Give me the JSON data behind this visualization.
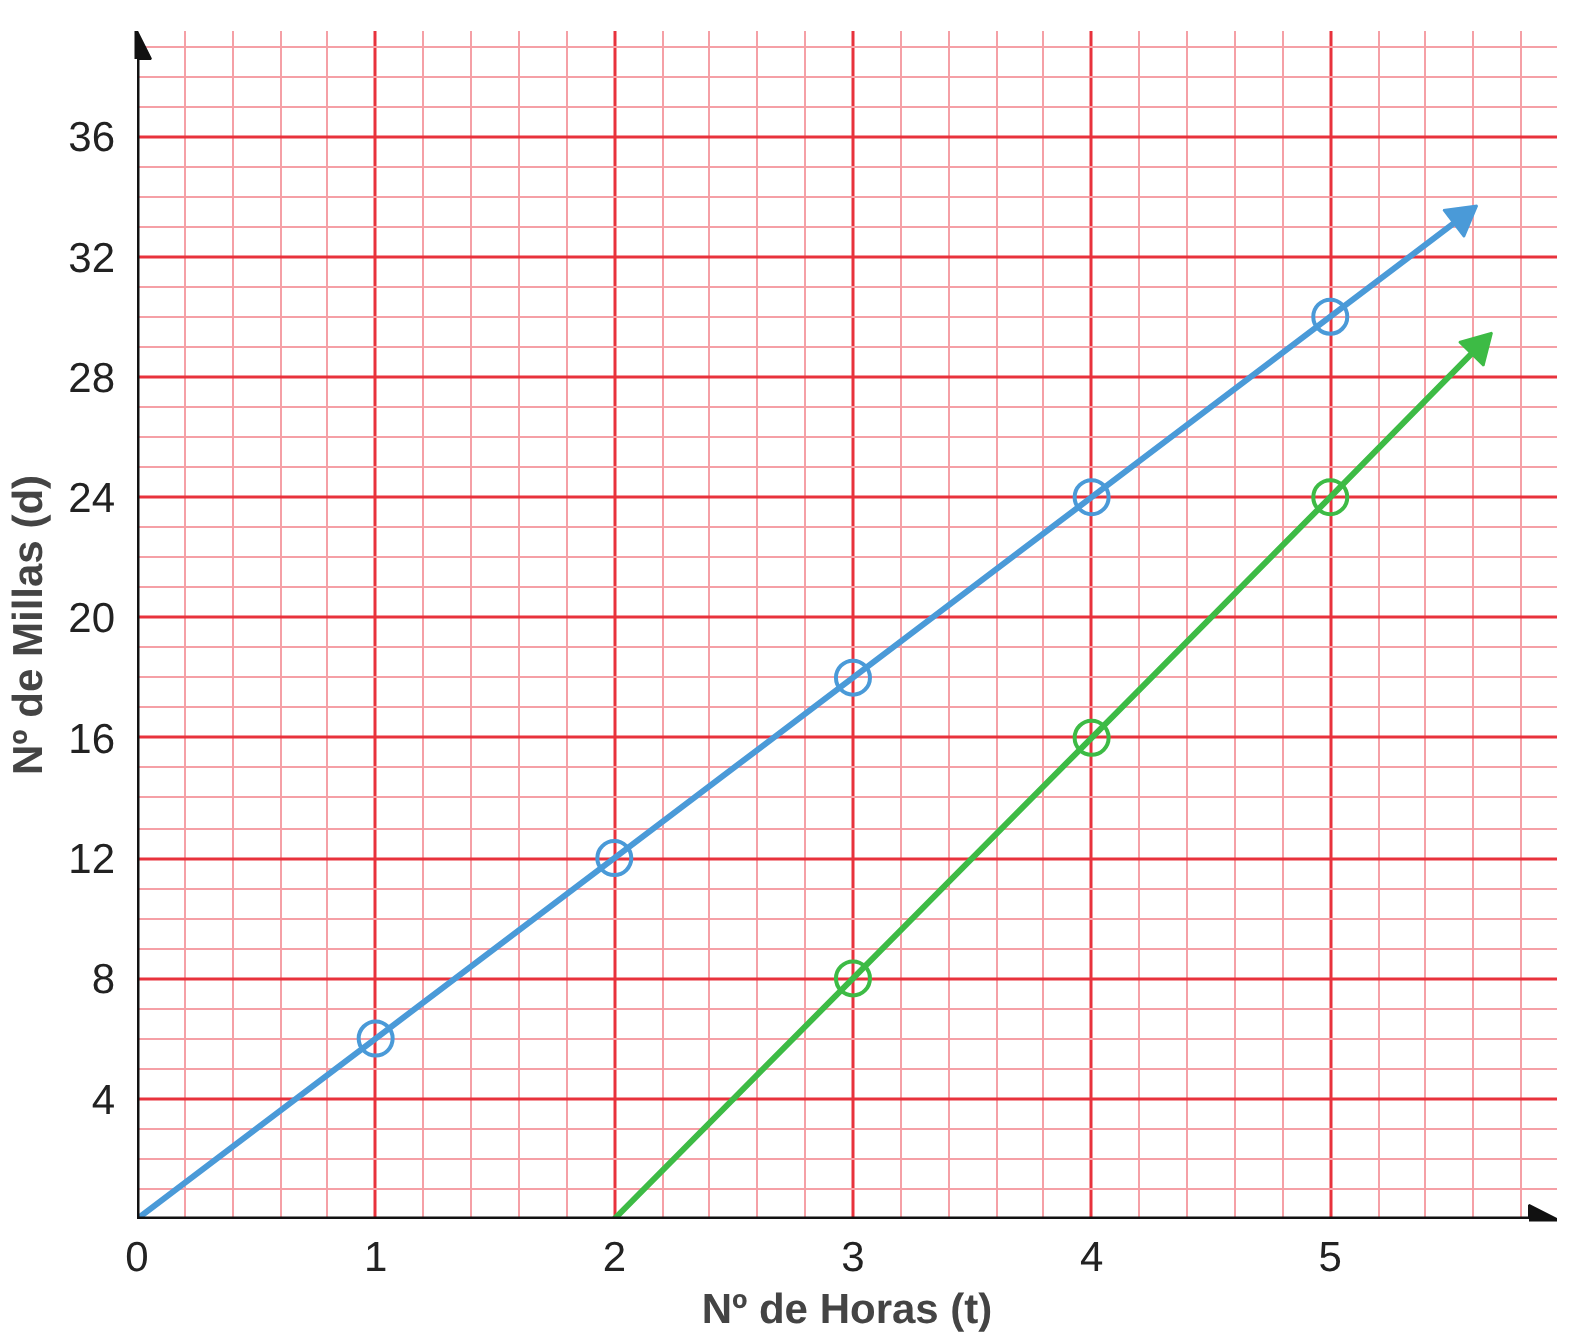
{
  "chart_data": {
    "type": "line",
    "xlabel": "Nº de Horas (t)",
    "ylabel": "Nº de Millas (d)",
    "xlim": [
      0,
      5.95
    ],
    "ylim": [
      0,
      39.5
    ],
    "xticks": [
      0,
      1,
      2,
      3,
      4,
      5
    ],
    "yticks": [
      4,
      8,
      12,
      16,
      20,
      24,
      28,
      32,
      36
    ],
    "grid": true,
    "marker": "none",
    "series": [
      {
        "color": "#4a9ad8",
        "x": [
          0,
          1,
          2,
          3,
          4,
          5,
          5.55
        ],
        "values": [
          0,
          6,
          12,
          18,
          24,
          30,
          33.3
        ]
      },
      {
        "type": "scatter",
        "marker": "circle",
        "color": "#4a9ad8",
        "x": [
          1,
          2,
          3,
          4,
          5
        ],
        "values": [
          6,
          12,
          18,
          24,
          30
        ]
      },
      {
        "color": "#3dbb45",
        "x": [
          2,
          3,
          4,
          5,
          5.62
        ],
        "values": [
          0,
          8,
          16,
          24,
          29.0
        ]
      },
      {
        "type": "scatter",
        "marker": "circle",
        "color": "#3dbb45",
        "x": [
          3,
          4,
          5
        ],
        "values": [
          8,
          16,
          24
        ]
      }
    ]
  }
}
